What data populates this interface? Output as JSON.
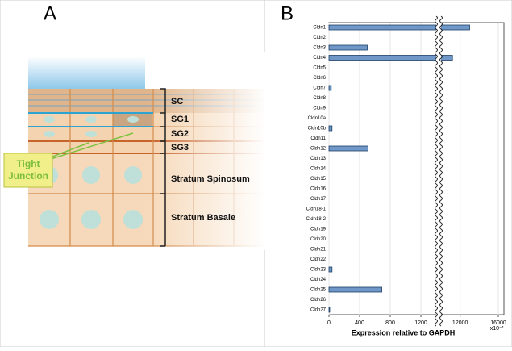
{
  "panel_a": {
    "label": "A",
    "layers": [
      "SC",
      "SG1",
      "SG2",
      "SG3",
      "Stratum Spinosum",
      "Stratum Basale"
    ],
    "callout": "Tight Junction"
  },
  "chart_data": {
    "type": "bar",
    "orientation": "horizontal",
    "label": "B",
    "categories": [
      "Cldn1",
      "Cldn2",
      "Cldn3",
      "Cldn4",
      "Cldn5",
      "Cldn6",
      "Cldn7",
      "Cldn8",
      "Cldn9",
      "Cldn10a",
      "Cldn10b",
      "Cldn11",
      "Cldn12",
      "Cldn13",
      "Cldn14",
      "Cldn15",
      "Cldn16",
      "Cldn17",
      "Cldn18-1",
      "Cldn18-2",
      "Cldn19",
      "Cldn20",
      "Cldn21",
      "Cldn22",
      "Cldn23",
      "Cldn24",
      "Cldn25",
      "Cldn26",
      "Cldn27"
    ],
    "values": [
      13000,
      0,
      500,
      11200,
      0,
      0,
      30,
      0,
      0,
      0,
      40,
      0,
      510,
      0,
      0,
      0,
      0,
      0,
      0,
      0,
      0,
      0,
      0,
      0,
      40,
      0,
      690,
      0,
      10
    ],
    "color": "#6f97c8",
    "xlim": [
      0,
      16000
    ],
    "xbreak": [
      1400,
      10000
    ],
    "xticks": [
      0,
      400,
      800,
      1200,
      12000,
      16000
    ],
    "x_unit": "x10⁻¹",
    "xlabel": "Expression relative to GAPDH",
    "grid": true
  }
}
